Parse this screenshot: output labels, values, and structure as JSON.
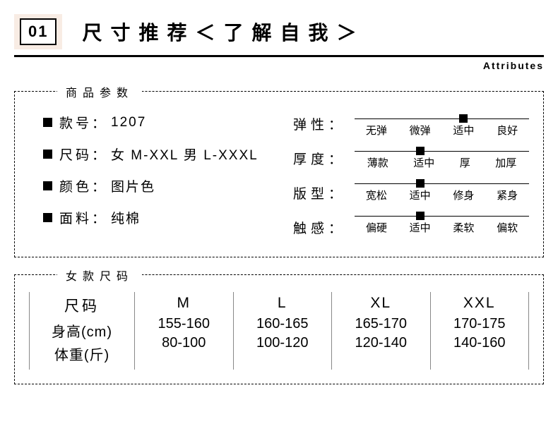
{
  "header": {
    "badge": "01",
    "title": "尺寸推荐＜了解自我＞",
    "subtitle": "Attributes"
  },
  "params_box": {
    "legend": "商品参数",
    "specs": [
      {
        "label": "款号：",
        "value": "1207"
      },
      {
        "label": "尺码：",
        "value": "女 M-XXL 男 L-XXXL"
      },
      {
        "label": "颜色：",
        "value": "图片色"
      },
      {
        "label": "面料：",
        "value": "纯棉"
      }
    ],
    "properties": [
      {
        "label": "弹性：",
        "options": [
          "无弹",
          "微弹",
          "适中",
          "良好"
        ],
        "selected_index": 2
      },
      {
        "label": "厚度：",
        "options": [
          "薄款",
          "适中",
          "厚",
          "加厚"
        ],
        "selected_index": 1
      },
      {
        "label": "版型：",
        "options": [
          "宽松",
          "适中",
          "修身",
          "紧身"
        ],
        "selected_index": 1
      },
      {
        "label": "触感：",
        "options": [
          "偏硬",
          "适中",
          "柔软",
          "偏软"
        ],
        "selected_index": 1
      }
    ]
  },
  "size_table": {
    "legend": "女款尺码",
    "row_headers": [
      "尺码",
      "身高(cm)",
      "体重(斤)"
    ],
    "columns": [
      {
        "size": "M",
        "height": "155-160",
        "weight": "80-100"
      },
      {
        "size": "L",
        "height": "160-165",
        "weight": "100-120"
      },
      {
        "size": "XL",
        "height": "165-170",
        "weight": "120-140"
      },
      {
        "size": "XXL",
        "height": "170-175",
        "weight": "140-160"
      }
    ]
  },
  "style": {
    "slider_positions_pct": [
      12.5,
      37.5,
      62.5,
      87.5
    ]
  }
}
